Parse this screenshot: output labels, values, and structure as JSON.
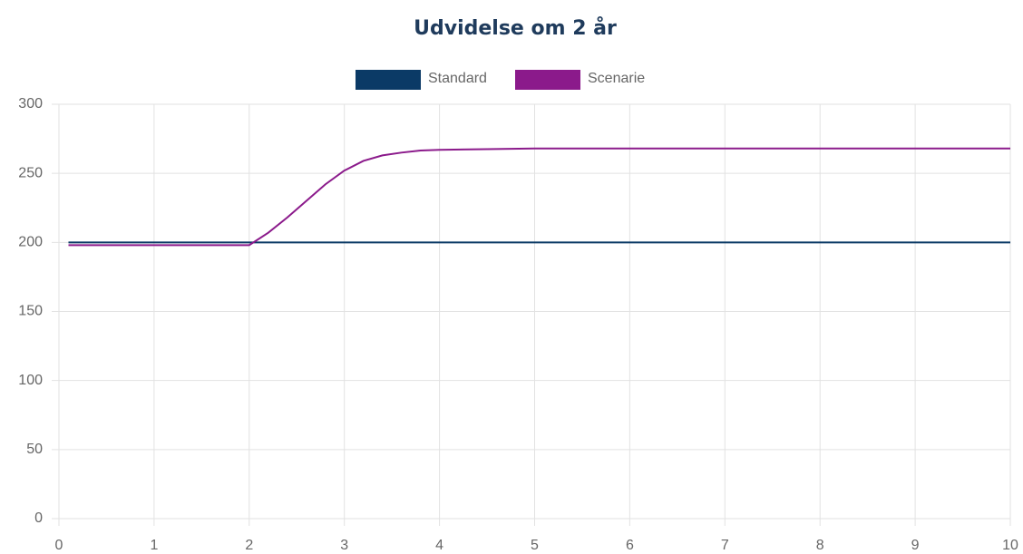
{
  "chart_data": {
    "type": "line",
    "title": "Udvidelse om 2 år",
    "x": [
      0.1,
      0.5,
      1,
      1.5,
      2,
      2.2,
      2.4,
      2.6,
      2.8,
      3,
      3.2,
      3.4,
      3.6,
      3.8,
      4,
      4.5,
      5,
      6,
      7,
      8,
      9,
      10
    ],
    "series": [
      {
        "name": "Standard",
        "color": "#0b3a66",
        "values": [
          200,
          200,
          200,
          200,
          200,
          200,
          200,
          200,
          200,
          200,
          200,
          200,
          200,
          200,
          200,
          200,
          200,
          200,
          200,
          200,
          200,
          200
        ]
      },
      {
        "name": "Scenarie",
        "color": "#8b1a8b",
        "values": [
          198,
          198,
          198,
          198,
          198,
          207,
          218,
          230,
          242,
          252,
          259,
          263,
          265,
          266.5,
          267,
          267.5,
          268,
          268,
          268,
          268,
          268,
          268
        ]
      }
    ],
    "xlim": [
      0,
      10
    ],
    "xticks": [
      0,
      1,
      2,
      3,
      4,
      5,
      6,
      7,
      8,
      9,
      10
    ],
    "ylim": [
      0,
      300
    ],
    "yticks": [
      0,
      50,
      100,
      150,
      200,
      250,
      300
    ],
    "grid": true,
    "legend": "top"
  }
}
